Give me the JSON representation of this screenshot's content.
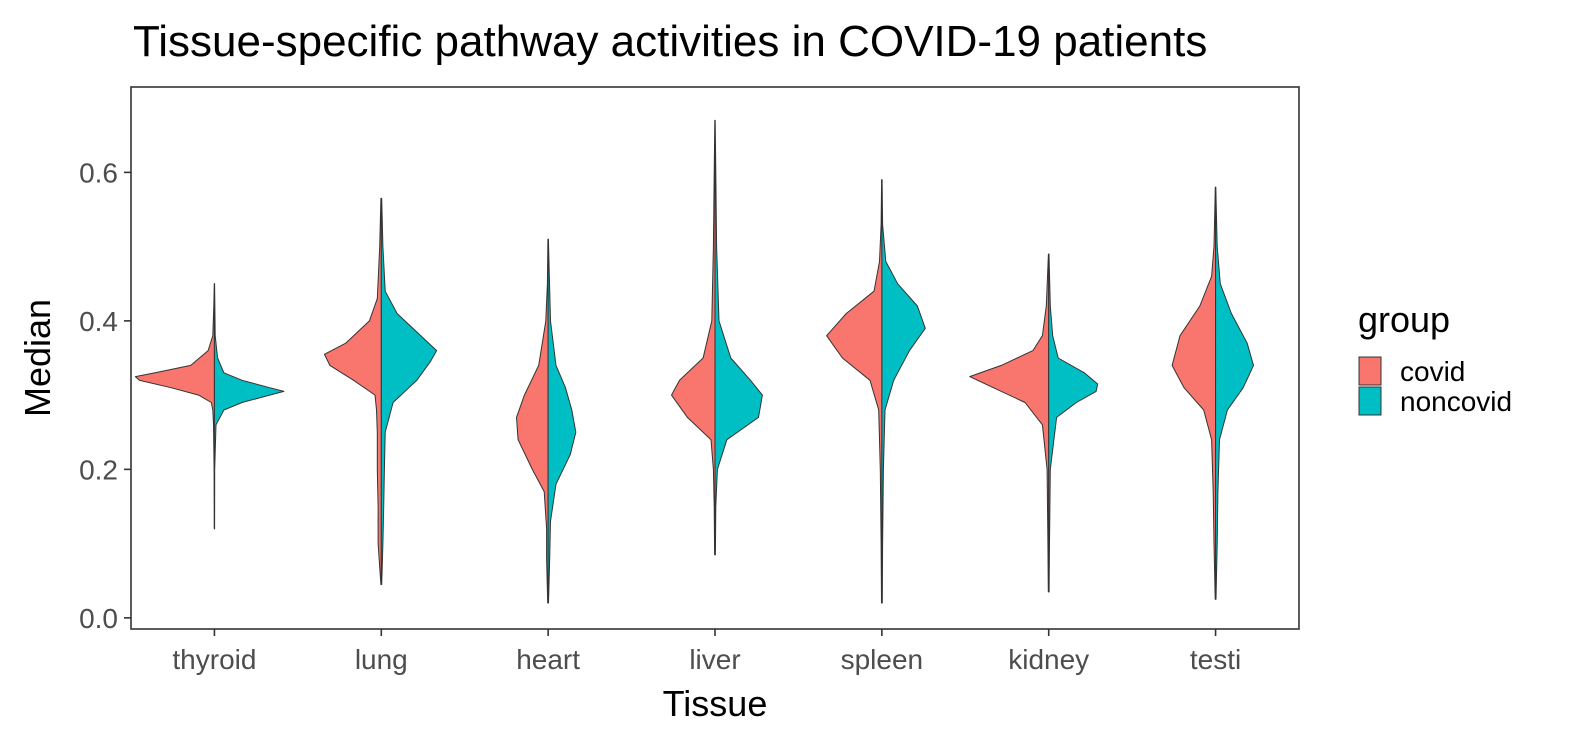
{
  "chart_data": {
    "type": "violin",
    "subtype": "split-violin",
    "title": "Tissue-specific pathway activities in COVID-19 patients",
    "xlabel": "Tissue",
    "ylabel": "Median",
    "ylim": [
      -0.015,
      0.715
    ],
    "y_ticks": [
      0.0,
      0.2,
      0.4,
      0.6
    ],
    "y_tick_labels": [
      "0.0",
      "0.2",
      "0.4",
      "0.6"
    ],
    "categories": [
      "thyroid",
      "lung",
      "heart",
      "liver",
      "spleen",
      "kidney",
      "testi"
    ],
    "grid": false,
    "legend": {
      "title": "group",
      "position": "right",
      "entries": [
        {
          "label": "covid",
          "color": "#F8766D"
        },
        {
          "label": "noncovid",
          "color": "#00BFC4"
        }
      ]
    },
    "series": [
      {
        "name": "covid",
        "color": "#F8766D",
        "side": "left",
        "violins": [
          {
            "tissue": "thyroid",
            "min": 0.12,
            "max": 0.45,
            "density": [
              [
                0.12,
                0.002
              ],
              [
                0.2,
                0.004
              ],
              [
                0.26,
                0.012
              ],
              [
                0.28,
                0.02
              ],
              [
                0.29,
                0.04
              ],
              [
                0.3,
                0.2
              ],
              [
                0.31,
                0.55
              ],
              [
                0.32,
                0.95
              ],
              [
                0.325,
                1.0
              ],
              [
                0.33,
                0.75
              ],
              [
                0.34,
                0.3
              ],
              [
                0.36,
                0.08
              ],
              [
                0.38,
                0.02
              ],
              [
                0.42,
                0.008
              ],
              [
                0.45,
                0.002
              ]
            ]
          },
          {
            "tissue": "lung",
            "min": 0.045,
            "max": 0.565,
            "density": [
              [
                0.045,
                0.005
              ],
              [
                0.1,
                0.04
              ],
              [
                0.15,
                0.04
              ],
              [
                0.2,
                0.05
              ],
              [
                0.25,
                0.05
              ],
              [
                0.28,
                0.06
              ],
              [
                0.3,
                0.08
              ],
              [
                0.32,
                0.35
              ],
              [
                0.34,
                0.65
              ],
              [
                0.355,
                0.72
              ],
              [
                0.37,
                0.45
              ],
              [
                0.4,
                0.15
              ],
              [
                0.43,
                0.05
              ],
              [
                0.5,
                0.02
              ],
              [
                0.565,
                0.005
              ]
            ]
          },
          {
            "tissue": "heart",
            "min": 0.02,
            "max": 0.51,
            "density": [
              [
                0.02,
                0.005
              ],
              [
                0.08,
                0.02
              ],
              [
                0.12,
                0.02
              ],
              [
                0.17,
                0.05
              ],
              [
                0.2,
                0.2
              ],
              [
                0.24,
                0.38
              ],
              [
                0.27,
                0.4
              ],
              [
                0.3,
                0.3
              ],
              [
                0.34,
                0.12
              ],
              [
                0.4,
                0.03
              ],
              [
                0.45,
                0.01
              ],
              [
                0.51,
                0.003
              ]
            ]
          },
          {
            "tissue": "liver",
            "min": 0.085,
            "max": 0.67,
            "density": [
              [
                0.085,
                0.005
              ],
              [
                0.15,
                0.01
              ],
              [
                0.2,
                0.02
              ],
              [
                0.24,
                0.05
              ],
              [
                0.27,
                0.35
              ],
              [
                0.3,
                0.55
              ],
              [
                0.32,
                0.45
              ],
              [
                0.35,
                0.15
              ],
              [
                0.4,
                0.04
              ],
              [
                0.5,
                0.02
              ],
              [
                0.6,
                0.01
              ],
              [
                0.67,
                0.003
              ]
            ]
          },
          {
            "tissue": "spleen",
            "min": 0.02,
            "max": 0.59,
            "density": [
              [
                0.02,
                0.005
              ],
              [
                0.1,
                0.01
              ],
              [
                0.2,
                0.02
              ],
              [
                0.28,
                0.04
              ],
              [
                0.32,
                0.15
              ],
              [
                0.35,
                0.5
              ],
              [
                0.38,
                0.7
              ],
              [
                0.41,
                0.45
              ],
              [
                0.44,
                0.1
              ],
              [
                0.48,
                0.03
              ],
              [
                0.53,
                0.01
              ],
              [
                0.59,
                0.003
              ]
            ]
          },
          {
            "tissue": "kidney",
            "min": 0.035,
            "max": 0.49,
            "density": [
              [
                0.035,
                0.005
              ],
              [
                0.1,
                0.01
              ],
              [
                0.2,
                0.02
              ],
              [
                0.26,
                0.08
              ],
              [
                0.29,
                0.3
              ],
              [
                0.31,
                0.7
              ],
              [
                0.325,
                1.0
              ],
              [
                0.34,
                0.6
              ],
              [
                0.36,
                0.2
              ],
              [
                0.38,
                0.08
              ],
              [
                0.42,
                0.03
              ],
              [
                0.49,
                0.004
              ]
            ]
          },
          {
            "tissue": "testi",
            "min": 0.025,
            "max": 0.58,
            "density": [
              [
                0.025,
                0.005
              ],
              [
                0.1,
                0.02
              ],
              [
                0.17,
                0.03
              ],
              [
                0.24,
                0.05
              ],
              [
                0.28,
                0.15
              ],
              [
                0.31,
                0.4
              ],
              [
                0.34,
                0.55
              ],
              [
                0.38,
                0.45
              ],
              [
                0.42,
                0.2
              ],
              [
                0.46,
                0.05
              ],
              [
                0.5,
                0.02
              ],
              [
                0.58,
                0.003
              ]
            ]
          }
        ]
      },
      {
        "name": "noncovid",
        "color": "#00BFC4",
        "side": "right",
        "violins": [
          {
            "tissue": "thyroid",
            "min": 0.12,
            "max": 0.45,
            "density": [
              [
                0.12,
                0.002
              ],
              [
                0.2,
                0.004
              ],
              [
                0.26,
                0.02
              ],
              [
                0.28,
                0.12
              ],
              [
                0.29,
                0.35
              ],
              [
                0.3,
                0.7
              ],
              [
                0.305,
                0.88
              ],
              [
                0.31,
                0.7
              ],
              [
                0.32,
                0.35
              ],
              [
                0.33,
                0.12
              ],
              [
                0.35,
                0.04
              ],
              [
                0.38,
                0.01
              ],
              [
                0.45,
                0.002
              ]
            ]
          },
          {
            "tissue": "lung",
            "min": 0.045,
            "max": 0.565,
            "density": [
              [
                0.045,
                0.005
              ],
              [
                0.1,
                0.02
              ],
              [
                0.15,
                0.03
              ],
              [
                0.2,
                0.04
              ],
              [
                0.25,
                0.05
              ],
              [
                0.29,
                0.15
              ],
              [
                0.32,
                0.45
              ],
              [
                0.345,
                0.62
              ],
              [
                0.36,
                0.7
              ],
              [
                0.38,
                0.5
              ],
              [
                0.41,
                0.2
              ],
              [
                0.44,
                0.05
              ],
              [
                0.5,
                0.02
              ],
              [
                0.565,
                0.005
              ]
            ]
          },
          {
            "tissue": "heart",
            "min": 0.02,
            "max": 0.51,
            "density": [
              [
                0.02,
                0.005
              ],
              [
                0.08,
                0.02
              ],
              [
                0.13,
                0.03
              ],
              [
                0.18,
                0.1
              ],
              [
                0.22,
                0.28
              ],
              [
                0.25,
                0.35
              ],
              [
                0.28,
                0.3
              ],
              [
                0.31,
                0.22
              ],
              [
                0.34,
                0.1
              ],
              [
                0.4,
                0.03
              ],
              [
                0.51,
                0.003
              ]
            ]
          },
          {
            "tissue": "liver",
            "min": 0.085,
            "max": 0.67,
            "density": [
              [
                0.085,
                0.005
              ],
              [
                0.15,
                0.01
              ],
              [
                0.2,
                0.03
              ],
              [
                0.24,
                0.15
              ],
              [
                0.27,
                0.55
              ],
              [
                0.3,
                0.6
              ],
              [
                0.32,
                0.45
              ],
              [
                0.35,
                0.2
              ],
              [
                0.4,
                0.05
              ],
              [
                0.5,
                0.02
              ],
              [
                0.6,
                0.01
              ],
              [
                0.67,
                0.003
              ]
            ]
          },
          {
            "tissue": "spleen",
            "min": 0.02,
            "max": 0.59,
            "density": [
              [
                0.02,
                0.005
              ],
              [
                0.1,
                0.01
              ],
              [
                0.2,
                0.02
              ],
              [
                0.28,
                0.04
              ],
              [
                0.32,
                0.15
              ],
              [
                0.36,
                0.35
              ],
              [
                0.39,
                0.55
              ],
              [
                0.42,
                0.45
              ],
              [
                0.45,
                0.2
              ],
              [
                0.48,
                0.05
              ],
              [
                0.53,
                0.01
              ],
              [
                0.59,
                0.003
              ]
            ]
          },
          {
            "tissue": "kidney",
            "min": 0.035,
            "max": 0.49,
            "density": [
              [
                0.035,
                0.005
              ],
              [
                0.1,
                0.01
              ],
              [
                0.2,
                0.02
              ],
              [
                0.27,
                0.1
              ],
              [
                0.29,
                0.35
              ],
              [
                0.305,
                0.6
              ],
              [
                0.315,
                0.62
              ],
              [
                0.33,
                0.45
              ],
              [
                0.35,
                0.12
              ],
              [
                0.38,
                0.05
              ],
              [
                0.42,
                0.02
              ],
              [
                0.49,
                0.004
              ]
            ]
          },
          {
            "tissue": "testi",
            "min": 0.025,
            "max": 0.58,
            "density": [
              [
                0.025,
                0.005
              ],
              [
                0.1,
                0.02
              ],
              [
                0.17,
                0.03
              ],
              [
                0.24,
                0.05
              ],
              [
                0.28,
                0.15
              ],
              [
                0.31,
                0.35
              ],
              [
                0.34,
                0.48
              ],
              [
                0.37,
                0.4
              ],
              [
                0.41,
                0.2
              ],
              [
                0.45,
                0.06
              ],
              [
                0.5,
                0.02
              ],
              [
                0.58,
                0.003
              ]
            ]
          }
        ]
      }
    ]
  }
}
